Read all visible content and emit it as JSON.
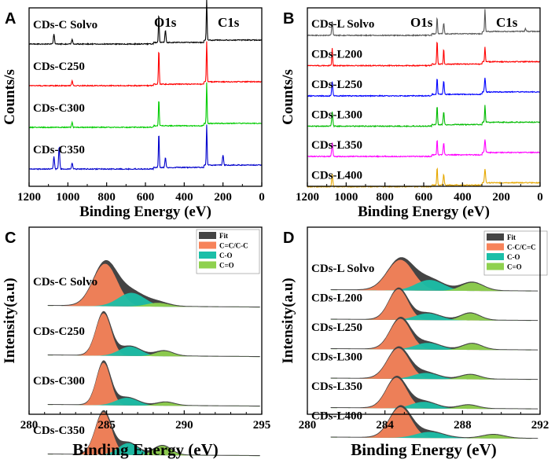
{
  "chart_data": [
    {
      "panel": "A",
      "type": "line",
      "title": "",
      "xlabel": "Binding Energy (eV)",
      "ylabel": "Counts/s",
      "xlim": [
        1200,
        0
      ],
      "xticks": [
        1200,
        1000,
        800,
        600,
        400,
        200,
        0
      ],
      "peak_labels": [
        {
          "text": "O1s",
          "x": 531
        },
        {
          "text": "C1s",
          "x": 284
        }
      ],
      "series": [
        {
          "name": "CDs-C Solvo",
          "color": "#000000",
          "peaks": [
            {
              "x": 1072,
              "h": 0.25
            },
            {
              "x": 978,
              "h": 0.12
            },
            {
              "x": 531,
              "h": 0.7
            },
            {
              "x": 497,
              "h": 0.3
            },
            {
              "x": 284,
              "h": 1.0
            }
          ]
        },
        {
          "name": "CDs-C250",
          "color": "#ff0000",
          "peaks": [
            {
              "x": 978,
              "h": 0.12
            },
            {
              "x": 531,
              "h": 0.85
            },
            {
              "x": 284,
              "h": 1.0
            }
          ]
        },
        {
          "name": "CDs-C300",
          "color": "#00cc00",
          "peaks": [
            {
              "x": 978,
              "h": 0.12
            },
            {
              "x": 531,
              "h": 0.65
            },
            {
              "x": 284,
              "h": 1.0
            }
          ]
        },
        {
          "name": "CDs-C350",
          "color": "#0000cc",
          "peaks": [
            {
              "x": 1072,
              "h": 0.3
            },
            {
              "x": 1045,
              "h": 0.55
            },
            {
              "x": 978,
              "h": 0.15
            },
            {
              "x": 531,
              "h": 0.85
            },
            {
              "x": 497,
              "h": 0.25
            },
            {
              "x": 284,
              "h": 1.0
            },
            {
              "x": 200,
              "h": 0.25
            }
          ]
        }
      ]
    },
    {
      "panel": "B",
      "type": "line",
      "title": "",
      "xlabel": "Binding Energy (eV)",
      "ylabel": "Counts/s",
      "xlim": [
        1200,
        0
      ],
      "xticks": [
        1200,
        1000,
        800,
        600,
        400,
        200,
        0
      ],
      "peak_labels": [
        {
          "text": "O1s",
          "x": 531
        },
        {
          "text": "C1s",
          "x": 284
        }
      ],
      "series": [
        {
          "name": "CDs-L Solvo",
          "color": "#555555",
          "peaks": [
            {
              "x": 1072,
              "h": 0.6
            },
            {
              "x": 531,
              "h": 0.7
            },
            {
              "x": 497,
              "h": 0.45
            },
            {
              "x": 284,
              "h": 0.95
            },
            {
              "x": 75,
              "h": 0.12
            }
          ]
        },
        {
          "name": "CDs-L200",
          "color": "#ff0000",
          "peaks": [
            {
              "x": 1072,
              "h": 0.75
            },
            {
              "x": 531,
              "h": 1.0
            },
            {
              "x": 497,
              "h": 0.65
            },
            {
              "x": 284,
              "h": 0.65
            }
          ]
        },
        {
          "name": "CDs-L250",
          "color": "#0000ff",
          "peaks": [
            {
              "x": 1072,
              "h": 0.6
            },
            {
              "x": 531,
              "h": 0.7
            },
            {
              "x": 497,
              "h": 0.55
            },
            {
              "x": 284,
              "h": 0.6
            }
          ]
        },
        {
          "name": "CDs-L300",
          "color": "#00bb00",
          "peaks": [
            {
              "x": 1072,
              "h": 0.6
            },
            {
              "x": 531,
              "h": 0.8
            },
            {
              "x": 497,
              "h": 0.55
            },
            {
              "x": 284,
              "h": 0.75
            }
          ]
        },
        {
          "name": "CDs-L350",
          "color": "#ff00ff",
          "peaks": [
            {
              "x": 1072,
              "h": 0.6
            },
            {
              "x": 531,
              "h": 0.65
            },
            {
              "x": 497,
              "h": 0.5
            },
            {
              "x": 284,
              "h": 0.55
            }
          ]
        },
        {
          "name": "CDs-L400",
          "color": "#e6a800",
          "peaks": [
            {
              "x": 1072,
              "h": 0.55
            },
            {
              "x": 531,
              "h": 0.75
            },
            {
              "x": 497,
              "h": 0.45
            },
            {
              "x": 284,
              "h": 0.6
            }
          ]
        }
      ]
    },
    {
      "panel": "C",
      "type": "area",
      "title": "",
      "xlabel": "Binding Energy (eV)",
      "ylabel": "Intensity(a.u)",
      "xlim": [
        280,
        295
      ],
      "xticks": [
        280,
        285,
        290,
        295
      ],
      "legend": [
        "Fit",
        "C=C/C-C",
        "C-O",
        "C=O"
      ],
      "legend_colors": [
        "#444444",
        "#f7835a",
        "#1bbfa8",
        "#8fd14f"
      ],
      "samples": [
        {
          "name": "CDs-C Solvo",
          "components": [
            {
              "type": "C=C/C-C",
              "center": 284.9,
              "height": 1.0,
              "width": 1.1
            },
            {
              "type": "C-O",
              "center": 286.6,
              "height": 0.32,
              "width": 1.2
            },
            {
              "type": "C=O",
              "center": 288.3,
              "height": 0.09,
              "width": 1.0
            }
          ]
        },
        {
          "name": "CDs-C250",
          "components": [
            {
              "type": "C=C/C-C",
              "center": 284.8,
              "height": 1.0,
              "width": 0.7
            },
            {
              "type": "C-O",
              "center": 286.5,
              "height": 0.22,
              "width": 1.0
            },
            {
              "type": "C=O",
              "center": 288.7,
              "height": 0.12,
              "width": 0.8
            }
          ]
        },
        {
          "name": "CDs-C300",
          "components": [
            {
              "type": "C=C/C-C",
              "center": 284.8,
              "height": 1.0,
              "width": 0.65
            },
            {
              "type": "C-O",
              "center": 286.3,
              "height": 0.18,
              "width": 1.0
            },
            {
              "type": "C=O",
              "center": 288.8,
              "height": 0.08,
              "width": 0.8
            }
          ]
        },
        {
          "name": "CDs-C350",
          "components": [
            {
              "type": "C=C/C-C",
              "center": 284.8,
              "height": 1.0,
              "width": 0.75
            },
            {
              "type": "C-O",
              "center": 286.4,
              "height": 0.28,
              "width": 0.9
            },
            {
              "type": "C=O",
              "center": 288.6,
              "height": 0.22,
              "width": 0.8
            }
          ]
        }
      ]
    },
    {
      "panel": "D",
      "type": "area",
      "title": "",
      "xlabel": "Binding Energy (eV)",
      "ylabel": "Intensity(a.u)",
      "xlim": [
        280,
        292
      ],
      "xticks": [
        280,
        284,
        288,
        292
      ],
      "legend": [
        "Fit",
        "C-C/C=C",
        "C-O",
        "C=O"
      ],
      "legend_colors": [
        "#444444",
        "#f7835a",
        "#1bbfa8",
        "#8fd14f"
      ],
      "samples": [
        {
          "name": "CDs-L Solvo",
          "components": [
            {
              "type": "C-C/C=C",
              "center": 284.8,
              "height": 1.0,
              "width": 0.95
            },
            {
              "type": "C-O",
              "center": 286.3,
              "height": 0.35,
              "width": 1.0
            },
            {
              "type": "C=O",
              "center": 288.5,
              "height": 0.27,
              "width": 0.8
            }
          ]
        },
        {
          "name": "CDs-L200",
          "components": [
            {
              "type": "C-C/C=C",
              "center": 284.7,
              "height": 1.0,
              "width": 0.7
            },
            {
              "type": "C-O",
              "center": 286.2,
              "height": 0.22,
              "width": 0.9
            },
            {
              "type": "C=O",
              "center": 288.4,
              "height": 0.23,
              "width": 0.7
            }
          ]
        },
        {
          "name": "CDs-L250",
          "components": [
            {
              "type": "C-C/C=C",
              "center": 284.8,
              "height": 1.0,
              "width": 0.75
            },
            {
              "type": "C-O",
              "center": 286.2,
              "height": 0.22,
              "width": 0.9
            },
            {
              "type": "C=O",
              "center": 288.5,
              "height": 0.2,
              "width": 0.7
            }
          ]
        },
        {
          "name": "CDs-L300",
          "components": [
            {
              "type": "C-C/C=C",
              "center": 284.7,
              "height": 1.0,
              "width": 0.8
            },
            {
              "type": "C-O",
              "center": 286.1,
              "height": 0.2,
              "width": 0.9
            },
            {
              "type": "C=O",
              "center": 288.4,
              "height": 0.15,
              "width": 0.7
            }
          ]
        },
        {
          "name": "CDs-L350",
          "components": [
            {
              "type": "C-C/C=C",
              "center": 284.6,
              "height": 1.0,
              "width": 0.75
            },
            {
              "type": "C-O",
              "center": 286.0,
              "height": 0.22,
              "width": 0.9
            },
            {
              "type": "C=O",
              "center": 288.3,
              "height": 0.12,
              "width": 0.7
            }
          ]
        },
        {
          "name": "CDs-L400",
          "components": [
            {
              "type": "C-C/C=C",
              "center": 284.8,
              "height": 1.0,
              "width": 0.8
            },
            {
              "type": "C-O",
              "center": 286.3,
              "height": 0.2,
              "width": 1.0
            },
            {
              "type": "C=O",
              "center": 289.6,
              "height": 0.12,
              "width": 0.8
            }
          ]
        }
      ]
    }
  ]
}
